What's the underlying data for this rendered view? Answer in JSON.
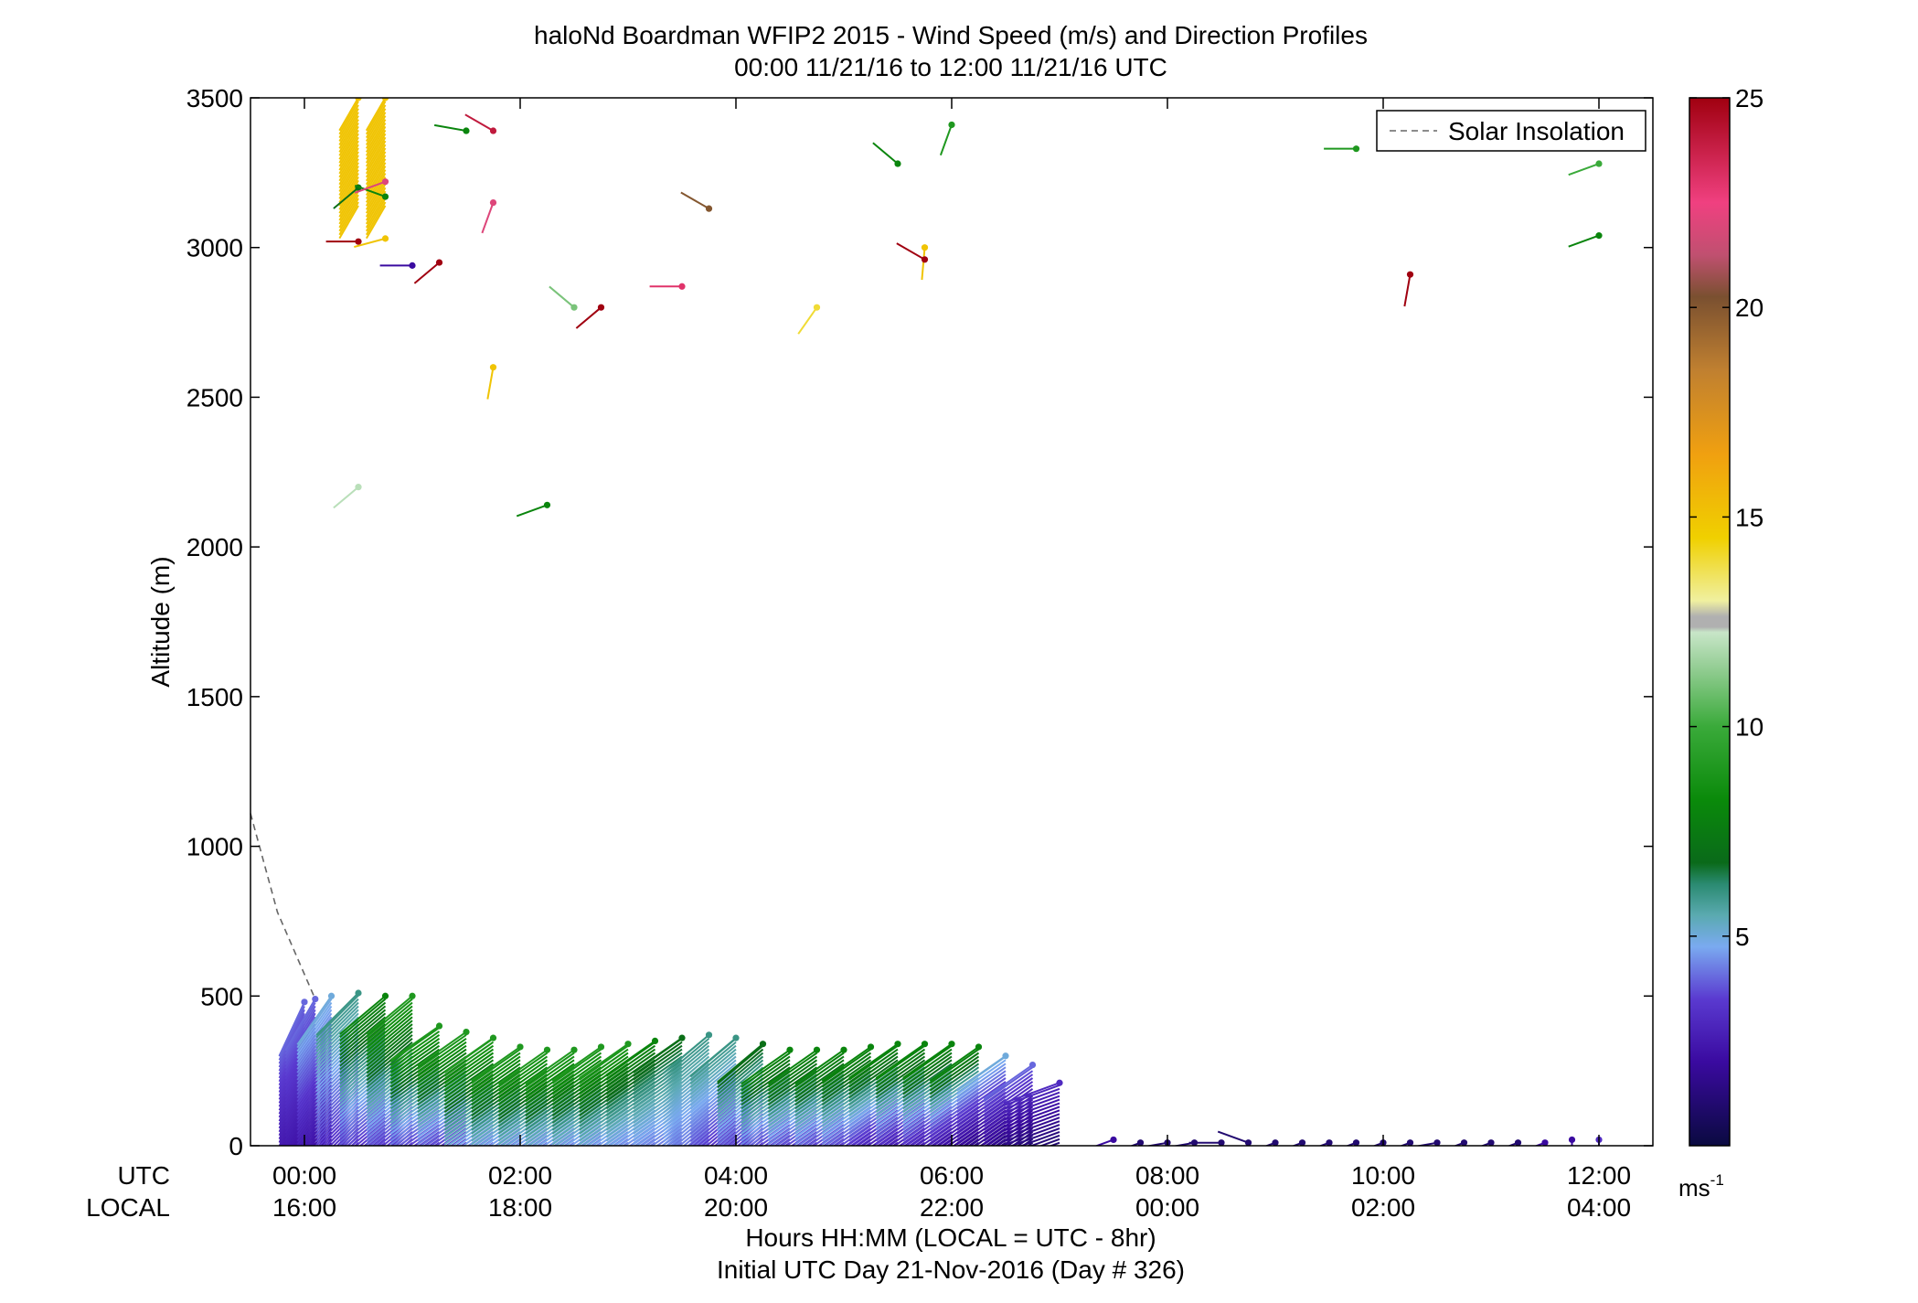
{
  "chart_data": {
    "type": "scatter",
    "title_line1": "haloNd Boardman WFIP2 2015 - Wind Speed (m/s) and Direction Profiles",
    "title_line2": "00:00 11/21/16 to 12:00 11/21/16  UTC",
    "ylabel": "Altitude (m)",
    "xlabel_line1": "Hours HH:MM  (LOCAL = UTC - 8hr)",
    "xlabel_line2": "Initial UTC Day 21-Nov-2016 (Day # 326)",
    "row_label_utc": "UTC",
    "row_label_local": "LOCAL",
    "xlim_hours": [
      -0.5,
      12.5
    ],
    "ylim": [
      0,
      3500
    ],
    "y_ticks": [
      0,
      500,
      1000,
      1500,
      2000,
      2500,
      3000,
      3500
    ],
    "x_ticks": [
      {
        "hour": 0,
        "utc": "00:00",
        "local": "16:00"
      },
      {
        "hour": 2,
        "utc": "02:00",
        "local": "18:00"
      },
      {
        "hour": 4,
        "utc": "04:00",
        "local": "20:00"
      },
      {
        "hour": 6,
        "utc": "06:00",
        "local": "22:00"
      },
      {
        "hour": 8,
        "utc": "08:00",
        "local": "00:00"
      },
      {
        "hour": 10,
        "utc": "10:00",
        "local": "02:00"
      },
      {
        "hour": 12,
        "utc": "12:00",
        "local": "04:00"
      }
    ],
    "legend": {
      "label": "Solar Insolation",
      "placement": "top-right"
    },
    "solar_insolation": [
      [
        -0.5,
        1110
      ],
      [
        -0.25,
        780
      ],
      [
        0.1,
        490
      ]
    ],
    "colorbar": {
      "range": [
        0,
        25
      ],
      "ticks": [
        5,
        10,
        15,
        20,
        25
      ],
      "unit": "ms",
      "unit_exp": "-1",
      "stops": [
        [
          0.0,
          "#0a0a40"
        ],
        [
          0.08,
          "#3a0aa0"
        ],
        [
          0.14,
          "#5a3ad0"
        ],
        [
          0.19,
          "#7aaaf0"
        ],
        [
          0.22,
          "#5aaab0"
        ],
        [
          0.25,
          "#2a8a70"
        ],
        [
          0.27,
          "#0a6a1a"
        ],
        [
          0.33,
          "#0a8a0a"
        ],
        [
          0.4,
          "#3aaa3a"
        ],
        [
          0.46,
          "#9ad09a"
        ],
        [
          0.49,
          "#c8e6c8"
        ],
        [
          0.495,
          "#b0b0b0"
        ],
        [
          0.505,
          "#b0b0b0"
        ],
        [
          0.52,
          "#f0f0a0"
        ],
        [
          0.58,
          "#f0d000"
        ],
        [
          0.66,
          "#f0a010"
        ],
        [
          0.74,
          "#c08030"
        ],
        [
          0.81,
          "#7a5030"
        ],
        [
          0.85,
          "#c05070"
        ],
        [
          0.9,
          "#f04080"
        ],
        [
          1.0,
          "#a00010"
        ]
      ]
    },
    "profiles": [
      {
        "hour": 0.0,
        "top": 480,
        "dir": 205,
        "low": 2,
        "high": 4
      },
      {
        "hour": 0.1,
        "top": 490,
        "dir": 210,
        "low": 2,
        "high": 4
      },
      {
        "hour": 0.25,
        "top": 500,
        "dir": 215,
        "low": 2,
        "high": 5
      },
      {
        "hour": 0.5,
        "top": 510,
        "dir": 225,
        "low": 3,
        "high": 6
      },
      {
        "hour": 0.75,
        "top": 500,
        "dir": 230,
        "low": 3,
        "high": 8
      },
      {
        "hour": 1.0,
        "top": 500,
        "dir": 230,
        "low": 3,
        "high": 9
      },
      {
        "hour": 1.25,
        "top": 400,
        "dir": 235,
        "low": 3,
        "high": 9
      },
      {
        "hour": 1.5,
        "top": 380,
        "dir": 235,
        "low": 3,
        "high": 9
      },
      {
        "hour": 1.75,
        "top": 360,
        "dir": 235,
        "low": 4,
        "high": 9
      },
      {
        "hour": 2.0,
        "top": 330,
        "dir": 235,
        "low": 4,
        "high": 9
      },
      {
        "hour": 2.25,
        "top": 320,
        "dir": 235,
        "low": 4,
        "high": 9
      },
      {
        "hour": 2.5,
        "top": 320,
        "dir": 235,
        "low": 4,
        "high": 9
      },
      {
        "hour": 2.75,
        "top": 330,
        "dir": 235,
        "low": 4,
        "high": 9
      },
      {
        "hour": 3.0,
        "top": 340,
        "dir": 235,
        "low": 4,
        "high": 9
      },
      {
        "hour": 3.25,
        "top": 350,
        "dir": 235,
        "low": 4,
        "high": 8
      },
      {
        "hour": 3.5,
        "top": 360,
        "dir": 235,
        "low": 4,
        "high": 7
      },
      {
        "hour": 3.75,
        "top": 370,
        "dir": 230,
        "low": 4,
        "high": 6
      },
      {
        "hour": 4.0,
        "top": 360,
        "dir": 230,
        "low": 3,
        "high": 6
      },
      {
        "hour": 4.25,
        "top": 340,
        "dir": 230,
        "low": 3,
        "high": 7
      },
      {
        "hour": 4.5,
        "top": 320,
        "dir": 235,
        "low": 3,
        "high": 8
      },
      {
        "hour": 4.75,
        "top": 320,
        "dir": 235,
        "low": 3,
        "high": 8
      },
      {
        "hour": 5.0,
        "top": 320,
        "dir": 235,
        "low": 3,
        "high": 8
      },
      {
        "hour": 5.25,
        "top": 330,
        "dir": 235,
        "low": 3,
        "high": 8
      },
      {
        "hour": 5.5,
        "top": 340,
        "dir": 235,
        "low": 2,
        "high": 8
      },
      {
        "hour": 5.75,
        "top": 340,
        "dir": 235,
        "low": 2,
        "high": 8
      },
      {
        "hour": 6.0,
        "top": 340,
        "dir": 235,
        "low": 2,
        "high": 8
      },
      {
        "hour": 6.25,
        "top": 330,
        "dir": 235,
        "low": 1,
        "high": 8
      },
      {
        "hour": 6.5,
        "top": 300,
        "dir": 235,
        "low": 1,
        "high": 5
      },
      {
        "hour": 6.75,
        "top": 270,
        "dir": 235,
        "low": 1,
        "high": 4
      },
      {
        "hour": 7.0,
        "top": 210,
        "dir": 250,
        "low": 1,
        "high": 3
      }
    ],
    "scattered_barbs": [
      {
        "hour": 0.5,
        "alt": 3200,
        "speed": 7,
        "dir": 230
      },
      {
        "hour": 0.75,
        "alt": 3170,
        "speed": 8,
        "dir": 290
      },
      {
        "hour": 0.75,
        "alt": 3220,
        "speed": 22,
        "dir": 250
      },
      {
        "hour": 0.5,
        "alt": 3020,
        "speed": 25,
        "dir": 270
      },
      {
        "hour": 0.75,
        "alt": 3030,
        "speed": 15,
        "dir": 255
      },
      {
        "hour": 1.0,
        "alt": 2940,
        "speed": 2,
        "dir": 270
      },
      {
        "hour": 1.25,
        "alt": 2950,
        "speed": 25,
        "dir": 230
      },
      {
        "hour": 1.5,
        "alt": 3390,
        "speed": 8,
        "dir": 280
      },
      {
        "hour": 1.75,
        "alt": 3390,
        "speed": 24,
        "dir": 300
      },
      {
        "hour": 1.75,
        "alt": 3150,
        "speed": 22,
        "dir": 200
      },
      {
        "hour": 1.75,
        "alt": 2600,
        "speed": 15,
        "dir": 190
      },
      {
        "hour": 2.5,
        "alt": 2800,
        "speed": 11,
        "dir": 310
      },
      {
        "hour": 2.75,
        "alt": 2800,
        "speed": 25,
        "dir": 230
      },
      {
        "hour": 3.5,
        "alt": 2870,
        "speed": 23,
        "dir": 270
      },
      {
        "hour": 3.75,
        "alt": 3130,
        "speed": 20,
        "dir": 300
      },
      {
        "hour": 0.5,
        "alt": 2200,
        "speed": 12,
        "dir": 230
      },
      {
        "hour": 2.25,
        "alt": 2140,
        "speed": 8,
        "dir": 250
      },
      {
        "hour": 4.75,
        "alt": 2800,
        "speed": 14,
        "dir": 215
      },
      {
        "hour": 5.5,
        "alt": 3280,
        "speed": 8,
        "dir": 310
      },
      {
        "hour": 6.0,
        "alt": 3410,
        "speed": 9,
        "dir": 200
      },
      {
        "hour": 5.75,
        "alt": 3000,
        "speed": 15,
        "dir": 185
      },
      {
        "hour": 5.75,
        "alt": 2960,
        "speed": 25,
        "dir": 300
      },
      {
        "hour": 10.25,
        "alt": 2910,
        "speed": 25,
        "dir": 190
      },
      {
        "hour": 12.0,
        "alt": 3280,
        "speed": 10,
        "dir": 250
      },
      {
        "hour": 12.0,
        "alt": 3040,
        "speed": 8,
        "dir": 250
      },
      {
        "hour": 9.75,
        "alt": 3330,
        "speed": 9,
        "dir": 270
      },
      {
        "hour": 7.5,
        "alt": 20,
        "speed": 2,
        "dir": 250
      },
      {
        "hour": 7.75,
        "alt": 10,
        "speed": 1,
        "dir": 250
      },
      {
        "hour": 8.0,
        "alt": 10,
        "speed": 1,
        "dir": 260
      },
      {
        "hour": 8.25,
        "alt": 10,
        "speed": 1,
        "dir": 260
      },
      {
        "hour": 8.5,
        "alt": 10,
        "speed": 1,
        "dir": 270
      },
      {
        "hour": 8.75,
        "alt": 10,
        "speed": 1,
        "dir": 290
      },
      {
        "hour": 9.0,
        "alt": 10,
        "speed": 1,
        "dir": 250
      },
      {
        "hour": 9.25,
        "alt": 10,
        "speed": 1,
        "dir": 250
      },
      {
        "hour": 9.5,
        "alt": 10,
        "speed": 1,
        "dir": 250
      },
      {
        "hour": 9.75,
        "alt": 10,
        "speed": 1,
        "dir": 250
      },
      {
        "hour": 10.0,
        "alt": 10,
        "speed": 1,
        "dir": 250
      },
      {
        "hour": 10.25,
        "alt": 10,
        "speed": 1,
        "dir": 250
      },
      {
        "hour": 10.5,
        "alt": 10,
        "speed": 1,
        "dir": 260
      },
      {
        "hour": 10.75,
        "alt": 10,
        "speed": 1,
        "dir": 250
      },
      {
        "hour": 11.0,
        "alt": 10,
        "speed": 1,
        "dir": 250
      },
      {
        "hour": 11.25,
        "alt": 10,
        "speed": 1,
        "dir": 250
      },
      {
        "hour": 11.5,
        "alt": 10,
        "speed": 2,
        "dir": 250
      },
      {
        "hour": 11.75,
        "alt": 20,
        "speed": 2,
        "dir": 180
      },
      {
        "hour": 12.0,
        "alt": 20,
        "speed": 3,
        "dir": 180
      }
    ]
  }
}
